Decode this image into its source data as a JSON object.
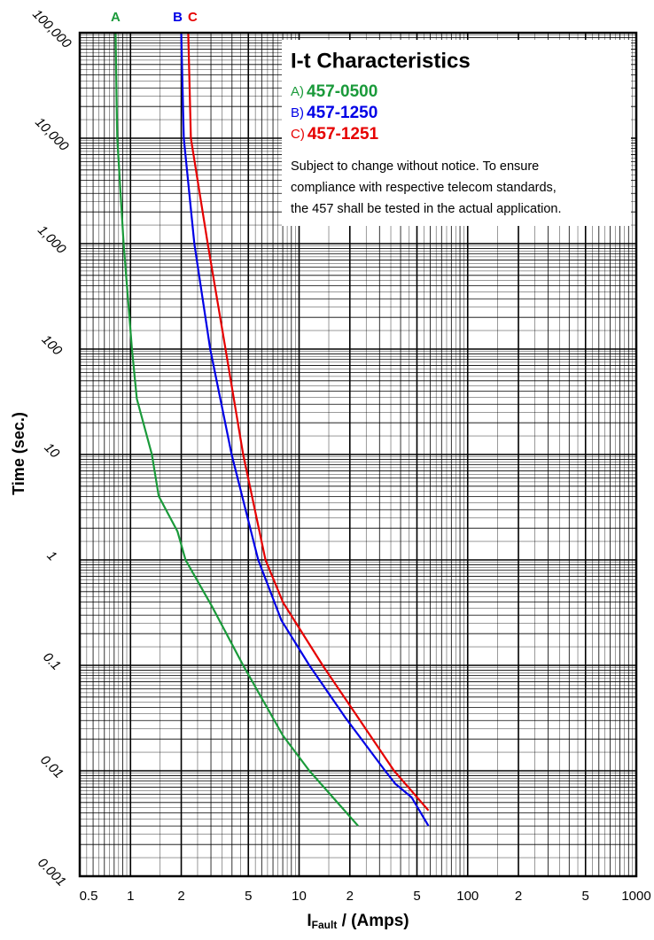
{
  "chart_data": {
    "type": "line",
    "log_x": true,
    "log_y": true,
    "grid": true,
    "minor_grid": true,
    "y_label": "Time (sec.)",
    "x_label": {
      "main": "I",
      "sub": "Fault",
      "rest": " / (Amps)"
    },
    "xlim": [
      0.5,
      1000
    ],
    "xticks": [
      0.5,
      1,
      2,
      5,
      10,
      {
        "value": 20,
        "label": "2"
      },
      {
        "value": 50,
        "label": "5"
      },
      100,
      {
        "value": 200,
        "label": "2"
      },
      {
        "value": 500,
        "label": "5"
      },
      1000
    ],
    "ylim": [
      0.001,
      100000
    ],
    "yticks": [
      {
        "value": 0.001,
        "label": "0.001"
      },
      {
        "value": 0.01,
        "label": "0.01"
      },
      0.1,
      1,
      10,
      100,
      {
        "value": 1000,
        "label": "1,000"
      },
      {
        "value": 10000,
        "label": "10,000"
      },
      {
        "value": 100000,
        "label": "100,000"
      }
    ],
    "legend": {
      "title": "I-t Characteristics",
      "position": "upper right",
      "note": [
        "Subject to change without notice. To ensure",
        "compliance with respective telecom standards,",
        "the 457 shall be tested in the actual application."
      ]
    },
    "series": [
      {
        "name": "457-0500",
        "label": "A",
        "legend_label": "A)",
        "color": "#1a9a3a",
        "x": [
          0.815,
          0.834,
          0.91,
          1.02,
          1.09,
          1.34,
          1.47,
          1.9,
          2.12,
          3.05,
          4.66,
          8.0,
          11.5,
          22.4
        ],
        "values": [
          100000,
          10000,
          1000,
          100,
          33.8,
          10,
          4.03,
          1.86,
          1,
          0.36,
          0.1,
          0.0217,
          0.01,
          0.003
        ]
      },
      {
        "name": "457-1250",
        "label": "B",
        "legend_label": "B)",
        "color": "#0000e6",
        "x": [
          2.0,
          2.07,
          2.39,
          2.97,
          3.98,
          5.72,
          7.85,
          11.5,
          18.8,
          32.4,
          37.3,
          46.5,
          58.5
        ],
        "values": [
          100000,
          10000,
          1000,
          100,
          10,
          1,
          0.268,
          0.1,
          0.0319,
          0.01,
          0.0075,
          0.0056,
          0.003
        ]
      },
      {
        "name": "457-1251",
        "label": "C",
        "legend_label": "C)",
        "color": "#e60000",
        "x": [
          2.2,
          2.28,
          2.87,
          3.66,
          4.66,
          6.32,
          8.03,
          13.8,
          22.4,
          36.6,
          58.5
        ],
        "values": [
          100000,
          10000,
          1000,
          100,
          10,
          1,
          0.395,
          0.1,
          0.0319,
          0.01,
          0.0042
        ]
      }
    ]
  }
}
